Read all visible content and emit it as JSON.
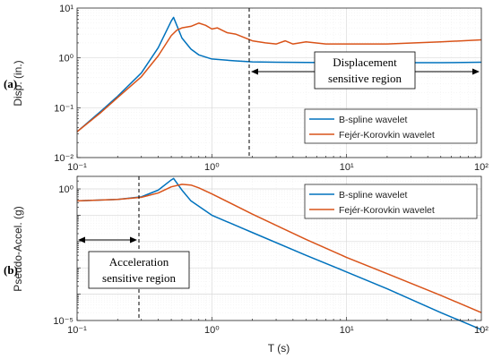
{
  "figure": {
    "panel_a_label": "(a)",
    "panel_b_label": "(b)",
    "region_a_line1": "Displacement",
    "region_a_line2": "sensitive region",
    "region_b_line1": "Acceleration",
    "region_b_line2": "sensitive region"
  },
  "chart_data": [
    {
      "type": "line",
      "xlabel": "",
      "ylabel": "Disp. (in.)",
      "xscale": "log",
      "yscale": "log",
      "xlim": [
        0.1,
        100
      ],
      "ylim": [
        0.01,
        10
      ],
      "x_tick_labels": [
        "10⁻¹",
        "10⁰",
        "10¹",
        "10²"
      ],
      "y_tick_labels": [
        "10¹",
        "10⁰",
        "10⁻¹",
        "10⁻²"
      ],
      "grid": true,
      "legend_position": "bottom-right",
      "annotation": {
        "text": "Displacement sensitive region",
        "x_start": 2,
        "x_end": 100
      },
      "series": [
        {
          "name": "B-spline wavelet",
          "color": "#0072bd",
          "x": [
            0.1,
            0.15,
            0.2,
            0.3,
            0.4,
            0.5,
            0.52,
            0.6,
            0.7,
            0.8,
            1.0,
            1.5,
            2.0,
            3.0,
            5.0,
            10,
            20,
            50,
            100
          ],
          "y": [
            0.033,
            0.085,
            0.17,
            0.5,
            1.6,
            5.5,
            6.5,
            2.5,
            1.5,
            1.15,
            0.95,
            0.87,
            0.83,
            0.82,
            0.81,
            0.8,
            0.8,
            0.8,
            0.82
          ]
        },
        {
          "name": "Fejér-Korovkin wavelet",
          "color": "#d95319",
          "x": [
            0.1,
            0.15,
            0.2,
            0.3,
            0.4,
            0.5,
            0.55,
            0.6,
            0.7,
            0.8,
            0.9,
            1.0,
            1.1,
            1.3,
            1.5,
            2.0,
            2.5,
            3.0,
            3.5,
            4.0,
            5.0,
            7.0,
            10,
            20,
            50,
            100
          ],
          "y": [
            0.033,
            0.08,
            0.16,
            0.42,
            1.1,
            2.8,
            3.6,
            4.0,
            4.3,
            5.0,
            4.5,
            3.8,
            4.0,
            3.2,
            3.0,
            2.2,
            2.0,
            1.9,
            2.2,
            1.9,
            2.1,
            1.9,
            1.9,
            1.9,
            2.1,
            2.3
          ]
        }
      ]
    },
    {
      "type": "line",
      "xlabel": "T (s)",
      "ylabel": "Pseudo-Accel. (g)",
      "xscale": "log",
      "yscale": "log",
      "xlim": [
        0.1,
        100
      ],
      "ylim": [
        1e-05,
        3
      ],
      "x_tick_labels": [
        "10⁻¹",
        "10⁰",
        "10¹",
        "10²"
      ],
      "y_tick_labels": [
        "10⁰",
        "10⁻⁵"
      ],
      "grid": true,
      "legend_position": "top-right",
      "annotation": {
        "text": "Acceleration sensitive region",
        "x_start": 0.1,
        "x_end": 0.3
      },
      "series": [
        {
          "name": "B-spline wavelet",
          "color": "#0072bd",
          "x": [
            0.1,
            0.2,
            0.3,
            0.4,
            0.5,
            0.52,
            0.6,
            0.7,
            1.0,
            2.0,
            5.0,
            10,
            20,
            50,
            100
          ],
          "y": [
            0.35,
            0.4,
            0.5,
            0.9,
            2.2,
            2.5,
            0.9,
            0.35,
            0.1,
            0.022,
            0.003,
            0.0007,
            0.00016,
            2e-05,
            4.5e-06
          ]
        },
        {
          "name": "Fejér-Korovkin wavelet",
          "color": "#d95319",
          "x": [
            0.1,
            0.2,
            0.3,
            0.4,
            0.5,
            0.6,
            0.7,
            0.8,
            1.0,
            2.0,
            5.0,
            10,
            20,
            50,
            100
          ],
          "y": [
            0.35,
            0.4,
            0.48,
            0.7,
            1.2,
            1.5,
            1.4,
            1.1,
            0.65,
            0.11,
            0.012,
            0.0025,
            0.0006,
            9e-05,
            2e-05
          ]
        }
      ]
    }
  ]
}
